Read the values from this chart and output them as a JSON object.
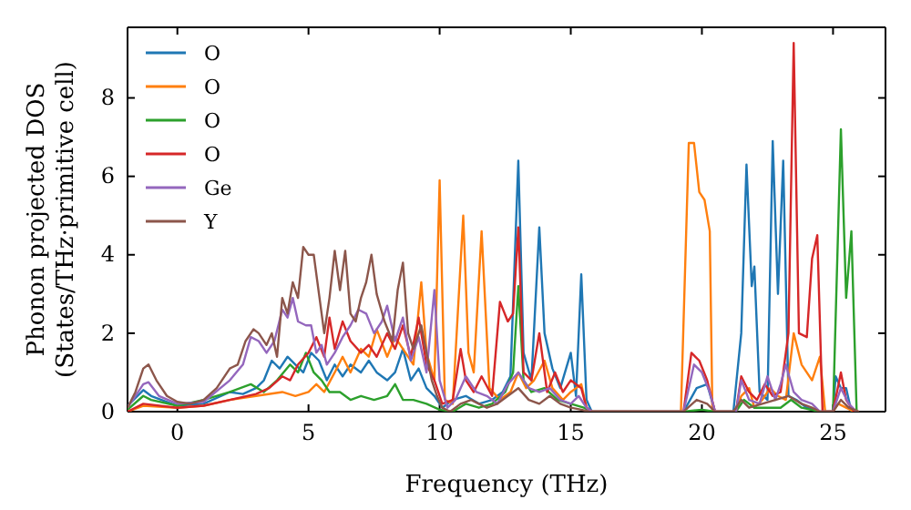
{
  "chart_data": {
    "type": "line",
    "xlabel": "Frequency (THz)",
    "ylabel": "Phonon projected DOS\n(States/THz·primitive cell)",
    "xlim": [
      -1.9,
      27
    ],
    "ylim": [
      0,
      9.8
    ],
    "xticks": [
      0,
      5,
      10,
      15,
      20,
      25
    ],
    "yticks": [
      0,
      2,
      4,
      6,
      8
    ],
    "legend": "top left",
    "series": [
      {
        "name": "O",
        "color": "#1f77b4",
        "x": [
          -1.9,
          -1.3,
          -1.0,
          0,
          1,
          2,
          2.5,
          3,
          3.3,
          3.6,
          3.9,
          4.2,
          4.5,
          4.8,
          5.1,
          5.4,
          5.7,
          6.0,
          6.3,
          6.6,
          7.0,
          7.3,
          7.6,
          8.0,
          8.3,
          8.6,
          8.9,
          9.2,
          9.5,
          9.8,
          10.1,
          10.5,
          11,
          11.5,
          12,
          12.4,
          12.7,
          13.0,
          13.2,
          13.5,
          13.8,
          14.0,
          14.3,
          14.6,
          15.0,
          15.2,
          15.4,
          15.6,
          15.8,
          19.3,
          19.8,
          20.2,
          20.5,
          21.2,
          21.5,
          21.7,
          21.9,
          22.0,
          22.2,
          22.5,
          22.7,
          22.9,
          23.1,
          23.3,
          23.6,
          24,
          24.5,
          25.0,
          25.1,
          25.3,
          25.5,
          25.7
        ],
        "values": [
          0.15,
          0.55,
          0.4,
          0.15,
          0.2,
          0.5,
          0.45,
          0.6,
          0.8,
          1.3,
          1.1,
          1.4,
          1.2,
          1.0,
          1.5,
          1.3,
          0.8,
          1.2,
          0.9,
          1.2,
          1.0,
          1.3,
          1.0,
          0.8,
          1.0,
          1.6,
          0.8,
          1.1,
          0.6,
          0.4,
          0.1,
          0.3,
          0.4,
          0.2,
          0.3,
          0.5,
          0.9,
          6.4,
          1.5,
          0.8,
          4.7,
          2.0,
          1.1,
          0.6,
          1.5,
          0.4,
          3.5,
          0.3,
          0,
          0,
          0.6,
          0.7,
          0,
          0,
          2.0,
          6.3,
          3.2,
          3.7,
          0.5,
          0.3,
          6.9,
          3.0,
          6.4,
          0.4,
          0.3,
          0.1,
          0,
          0,
          0.9,
          0.6,
          0.6,
          0
        ]
      },
      {
        "name": "O",
        "color": "#ff7f0e",
        "x": [
          -1.9,
          -1.3,
          0,
          1,
          2,
          3,
          4,
          4.5,
          5,
          5.3,
          5.6,
          6,
          6.3,
          6.6,
          7,
          7.3,
          7.6,
          8,
          8.3,
          8.6,
          9.0,
          9.3,
          9.5,
          9.8,
          10.0,
          10.2,
          10.5,
          10.9,
          11.1,
          11.3,
          11.6,
          11.9,
          12.3,
          12.7,
          13.0,
          13.3,
          13.6,
          14.0,
          14.3,
          14.7,
          15,
          15.4,
          15.6,
          15.8,
          19.2,
          19.5,
          19.7,
          19.9,
          20.1,
          20.3,
          20.4,
          21.3,
          21.5,
          21.8,
          22.0,
          22.3,
          22.6,
          22.9,
          23.2,
          23.5,
          23.8,
          24.2,
          24.5,
          24.7,
          25.0,
          25.2,
          25.5,
          25.8
        ],
        "values": [
          0,
          0.15,
          0.1,
          0.15,
          0.3,
          0.4,
          0.5,
          0.4,
          0.5,
          0.7,
          0.5,
          1.0,
          1.4,
          1.0,
          1.6,
          1.4,
          2.1,
          1.4,
          1.9,
          1.6,
          1.2,
          3.3,
          1.5,
          0.8,
          5.9,
          0.3,
          0.2,
          5.0,
          1.5,
          1.0,
          4.6,
          0.6,
          0.3,
          0.5,
          1.0,
          0.6,
          0.8,
          1.3,
          0.6,
          0.3,
          0.5,
          0.7,
          0.1,
          0,
          0,
          6.85,
          6.85,
          5.6,
          5.4,
          4.6,
          0,
          0,
          0.4,
          0.6,
          0.1,
          0.3,
          0.6,
          0.4,
          0.3,
          2.0,
          1.2,
          0.8,
          1.4,
          0,
          0,
          0.2,
          0.1,
          0
        ]
      },
      {
        "name": "O",
        "color": "#2ca02c",
        "x": [
          -1.9,
          -1.3,
          -1.0,
          0,
          1,
          2,
          2.8,
          3.3,
          3.8,
          4.3,
          4.6,
          4.9,
          5.2,
          5.5,
          5.8,
          6.2,
          6.6,
          7,
          7.5,
          8,
          8.3,
          8.6,
          9,
          9.5,
          10,
          10.5,
          11,
          11.5,
          12,
          12.5,
          12.8,
          13.0,
          13.2,
          13.5,
          14,
          14.5,
          15,
          15.5,
          15.8,
          19.3,
          20.0,
          20.5,
          21.3,
          21.6,
          22,
          22.5,
          23,
          23.4,
          23.8,
          24.5,
          25.0,
          25.3,
          25.5,
          25.7,
          25.9
        ],
        "values": [
          0.05,
          0.4,
          0.3,
          0.15,
          0.3,
          0.5,
          0.7,
          0.5,
          0.8,
          1.2,
          1.0,
          1.5,
          1.0,
          0.8,
          0.5,
          0.5,
          0.3,
          0.4,
          0.3,
          0.4,
          0.7,
          0.3,
          0.3,
          0.2,
          0.05,
          0,
          0.2,
          0.1,
          0.2,
          0.5,
          1.0,
          3.2,
          0.8,
          0.5,
          0.6,
          0.3,
          0.2,
          0.1,
          0,
          0,
          0.05,
          0,
          0,
          0.3,
          0.1,
          0.1,
          0.1,
          0.3,
          0.1,
          0,
          0,
          7.2,
          2.9,
          4.6,
          0
        ]
      },
      {
        "name": "O",
        "color": "#d62728",
        "x": [
          -1.9,
          -1.3,
          0,
          1,
          2,
          3,
          3.5,
          4.0,
          4.3,
          4.6,
          5,
          5.3,
          5.6,
          5.8,
          6.0,
          6.3,
          6.6,
          7.0,
          7.3,
          7.6,
          8.0,
          8.3,
          8.6,
          8.9,
          9.2,
          9.5,
          9.8,
          10.1,
          10.5,
          10.8,
          11.0,
          11.3,
          11.6,
          12.0,
          12.3,
          12.6,
          12.8,
          13.0,
          13.2,
          13.5,
          13.8,
          14.1,
          14.4,
          14.7,
          15,
          15.4,
          15.6,
          15.8,
          19.3,
          19.6,
          19.9,
          20.2,
          20.5,
          21.3,
          21.5,
          21.8,
          22.1,
          22.4,
          22.7,
          23.0,
          23.3,
          23.5,
          23.7,
          24.0,
          24.2,
          24.4,
          24.6,
          25.0,
          25.3,
          25.5,
          25.8
        ],
        "values": [
          0,
          0.2,
          0.1,
          0.15,
          0.3,
          0.45,
          0.6,
          0.9,
          0.8,
          1.2,
          1.5,
          1.9,
          1.4,
          2.4,
          1.6,
          2.3,
          1.8,
          1.5,
          1.7,
          1.4,
          2.0,
          1.6,
          2.2,
          1.4,
          2.4,
          1.2,
          0.8,
          0.2,
          0.3,
          1.6,
          0.8,
          0.5,
          0.9,
          0.4,
          2.8,
          2.3,
          2.5,
          4.7,
          1.0,
          0.8,
          2.0,
          0.5,
          1.0,
          0.5,
          0.8,
          0.6,
          0.1,
          0,
          0,
          1.5,
          1.3,
          0.8,
          0,
          0,
          0.9,
          0.5,
          0.3,
          0.7,
          0.4,
          0.5,
          2.0,
          9.4,
          2.0,
          1.9,
          3.9,
          4.5,
          0,
          0,
          1.0,
          0.3,
          0
        ]
      },
      {
        "name": "Ge",
        "color": "#9467bd",
        "x": [
          -1.9,
          -1.3,
          -1.1,
          -0.7,
          0,
          1,
          2,
          2.5,
          2.8,
          3.1,
          3.4,
          3.7,
          4.0,
          4.2,
          4.4,
          4.6,
          4.9,
          5.1,
          5.3,
          5.5,
          5.7,
          6.0,
          6.3,
          6.6,
          6.9,
          7.2,
          7.5,
          7.8,
          8.0,
          8.3,
          8.6,
          8.9,
          9.2,
          9.5,
          9.8,
          10.0,
          10.3,
          10.6,
          11.0,
          11.4,
          11.8,
          12.2,
          12.6,
          13.0,
          13.4,
          13.8,
          14.2,
          14.6,
          15.0,
          15.3,
          15.6,
          15.8,
          19.3,
          19.7,
          20.0,
          20.3,
          20.5,
          21.3,
          21.5,
          21.8,
          22.2,
          22.5,
          22.8,
          23.0,
          23.2,
          23.5,
          23.8,
          24.2,
          24.5,
          25.0,
          25.3,
          25.6,
          25.9
        ],
        "values": [
          0.1,
          0.7,
          0.75,
          0.4,
          0.2,
          0.25,
          0.8,
          1.2,
          1.9,
          1.8,
          1.5,
          1.8,
          2.6,
          2.4,
          2.9,
          2.3,
          2.2,
          2.2,
          1.5,
          1.7,
          1.2,
          1.5,
          1.9,
          2.2,
          2.6,
          2.5,
          2.0,
          2.3,
          2.7,
          1.8,
          2.4,
          1.3,
          1.9,
          1.0,
          3.1,
          0.8,
          0.1,
          0.3,
          0.9,
          0.5,
          0.4,
          0.2,
          0.7,
          1.0,
          0.6,
          0.5,
          0.6,
          0.3,
          0.2,
          0.4,
          0.1,
          0,
          0,
          1.2,
          1.0,
          0.5,
          0,
          0,
          0.8,
          0.3,
          0.2,
          0.9,
          0.3,
          0.7,
          1.2,
          0.5,
          0.3,
          0.2,
          0,
          0,
          0.6,
          0.2,
          0
        ]
      },
      {
        "name": "Y",
        "color": "#8c564b",
        "x": [
          -1.9,
          -1.6,
          -1.3,
          -1.1,
          -0.8,
          -0.4,
          0,
          0.5,
          1,
          1.5,
          2,
          2.3,
          2.6,
          2.9,
          3.1,
          3.4,
          3.6,
          3.8,
          4.0,
          4.2,
          4.4,
          4.6,
          4.8,
          5.0,
          5.2,
          5.4,
          5.6,
          5.8,
          6.0,
          6.2,
          6.4,
          6.6,
          6.8,
          7.0,
          7.2,
          7.4,
          7.6,
          7.9,
          8.2,
          8.4,
          8.6,
          8.8,
          9.0,
          9.3,
          9.5,
          9.7,
          9.9,
          10.1,
          10.4,
          10.8,
          11.2,
          11.8,
          12.2,
          12.6,
          13.0,
          13.4,
          13.8,
          14.2,
          14.6,
          15.0,
          15.4,
          15.7,
          19.3,
          19.8,
          20.2,
          20.5,
          21.2,
          21.5,
          21.8,
          22.3,
          22.8,
          23.3,
          23.8,
          24.2,
          24.5,
          25.0,
          25.3,
          25.6,
          26
        ],
        "values": [
          0.1,
          0.5,
          1.1,
          1.2,
          0.8,
          0.4,
          0.25,
          0.2,
          0.3,
          0.6,
          1.1,
          1.2,
          1.8,
          2.1,
          2.0,
          1.7,
          2.0,
          1.4,
          2.9,
          2.5,
          3.3,
          2.9,
          4.2,
          4.0,
          4.0,
          3.0,
          2.0,
          2.9,
          4.1,
          3.1,
          4.1,
          2.5,
          2.3,
          2.9,
          3.3,
          4.0,
          3.0,
          2.3,
          1.8,
          3.1,
          3.8,
          2.0,
          1.6,
          2.2,
          1.5,
          0.8,
          0.4,
          0.1,
          0,
          0.2,
          0.3,
          0.1,
          0.2,
          0.4,
          0.6,
          0.3,
          0.2,
          0.4,
          0.2,
          0.1,
          0.05,
          0,
          0,
          0.3,
          0.2,
          0,
          0,
          0.3,
          0.1,
          0.2,
          0.3,
          0.4,
          0.2,
          0.1,
          0,
          0,
          0.3,
          0.1,
          0
        ]
      }
    ]
  }
}
